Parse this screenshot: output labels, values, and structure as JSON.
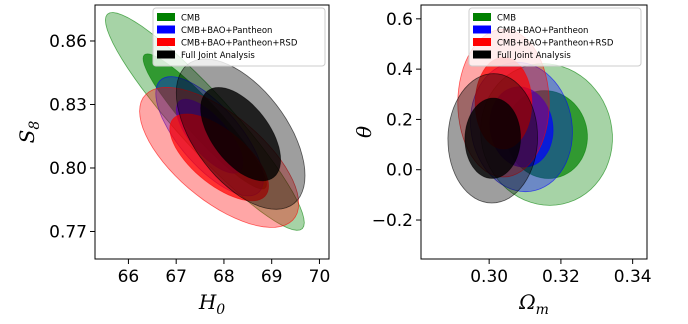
{
  "chart_data": [
    {
      "type": "contour",
      "xlabel": "H",
      "xlabel_sub": "0",
      "ylabel": "S",
      "ylabel_sub": "8",
      "xlim": [
        65.3,
        70.2
      ],
      "ylim": [
        0.757,
        0.877
      ],
      "xticks": [
        66,
        67,
        68,
        69,
        70
      ],
      "yticks": [
        0.77,
        0.8,
        0.83,
        0.86
      ],
      "ytick_labels": [
        "0.77",
        "0.80",
        "0.83",
        "0.86"
      ],
      "legend_position": "upper-right",
      "series": [
        {
          "name": "CMB",
          "color": "#008000",
          "mean": [
            67.6,
            0.822
          ],
          "sx": 0.85,
          "sy": 0.021,
          "rho": -0.93
        },
        {
          "name": "CMB+BAO+Pantheon",
          "color": "#0000ff",
          "mean": [
            67.7,
            0.815
          ],
          "sx": 0.46,
          "sy": 0.0115,
          "rho": -0.72
        },
        {
          "name": "CMB+BAO+Pantheon+RSD",
          "color": "#ff0000",
          "mean": [
            67.9,
            0.805
          ],
          "sx": 0.68,
          "sy": 0.0135,
          "rho": -0.66
        },
        {
          "name": "Full Joint Analysis",
          "color": "#000000",
          "mean": [
            68.35,
            0.816
          ],
          "sx": 0.55,
          "sy": 0.0145,
          "rho": -0.55
        }
      ]
    },
    {
      "type": "contour",
      "xlabel": "Ω",
      "xlabel_sub": "m",
      "ylabel": "θ",
      "ylabel_sub": "",
      "xlim": [
        0.281,
        0.344
      ],
      "ylim": [
        -0.355,
        0.655
      ],
      "xticks": [
        0.3,
        0.32,
        0.34
      ],
      "xtick_labels": [
        "0.30",
        "0.32",
        "0.34"
      ],
      "yticks": [
        -0.2,
        0.0,
        0.2,
        0.4,
        0.6
      ],
      "ytick_labels": [
        "−0.2",
        "0.0",
        "0.2",
        "0.4",
        "0.6"
      ],
      "legend_position": "upper-right",
      "series": [
        {
          "name": "CMB",
          "color": "#008000",
          "mean": [
            0.316,
            0.14
          ],
          "sx": 0.0075,
          "sy": 0.115,
          "rho": -0.05
        },
        {
          "name": "CMB+BAO+Pantheon",
          "color": "#0000ff",
          "mean": [
            0.309,
            0.17
          ],
          "sx": 0.0058,
          "sy": 0.105,
          "rho": -0.08
        },
        {
          "name": "CMB+BAO+Pantheon+RSD",
          "color": "#ff0000",
          "mean": [
            0.304,
            0.265
          ],
          "sx": 0.0052,
          "sy": 0.12,
          "rho": 0.0
        },
        {
          "name": "Full Joint Analysis",
          "color": "#000000",
          "mean": [
            0.301,
            0.125
          ],
          "sx": 0.0051,
          "sy": 0.105,
          "rho": 0.02
        }
      ]
    }
  ]
}
